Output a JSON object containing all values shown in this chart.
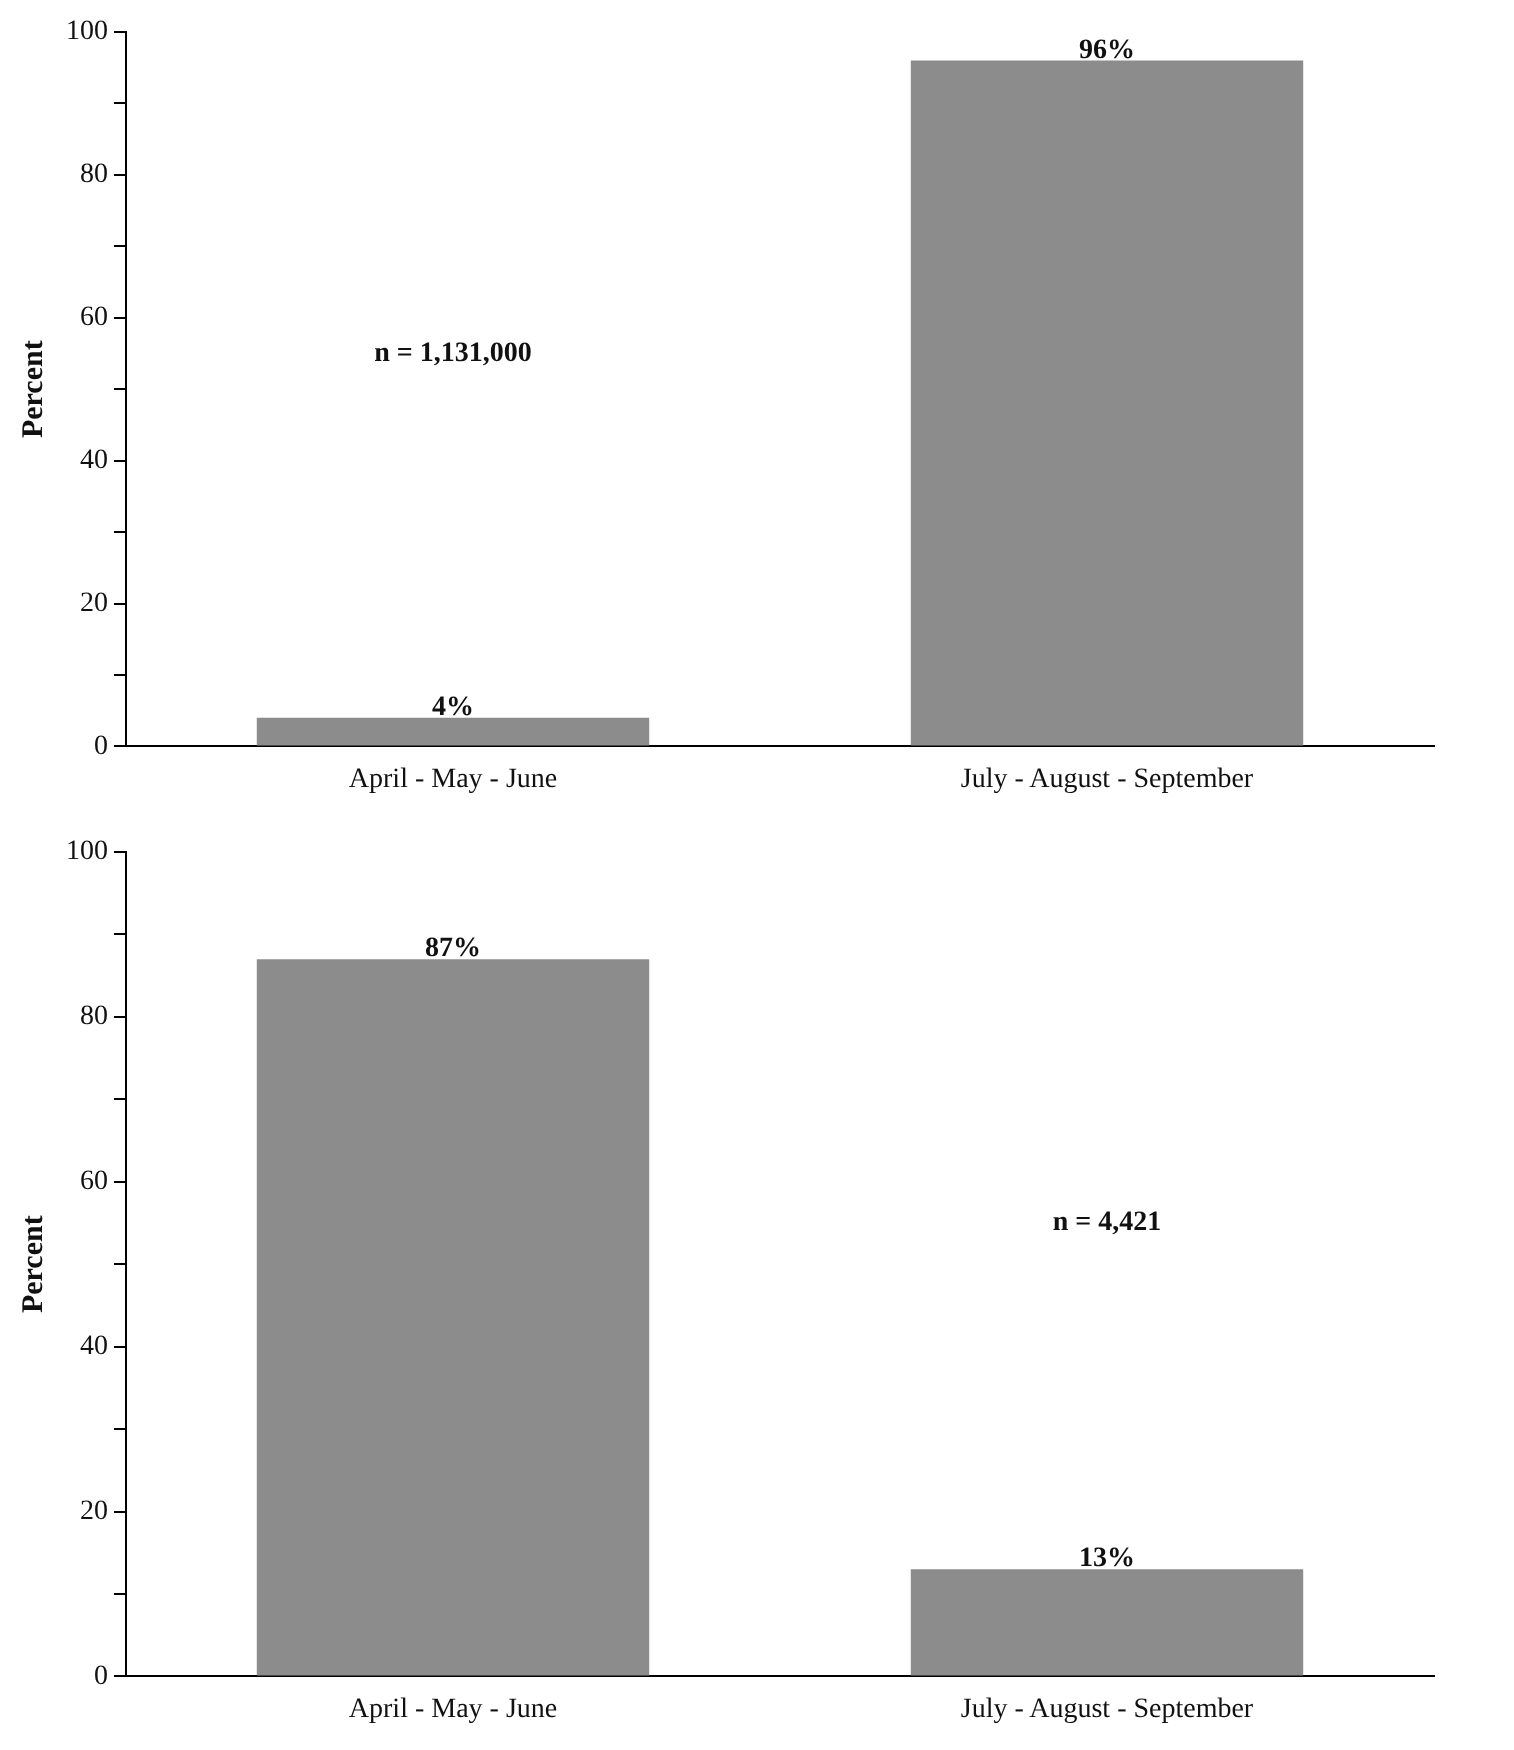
{
  "chart_data": [
    {
      "type": "bar",
      "ylabel": "Percent",
      "categories": [
        "April - May - June",
        "July - August - September"
      ],
      "values": [
        4,
        96
      ],
      "value_labels": [
        "4%",
        "96%"
      ],
      "color": "#8c8c8c",
      "ylim": [
        0,
        100
      ],
      "yticks": [
        0,
        {
          "value": 10,
          "label": null
        },
        20,
        {
          "value": 30,
          "label": null
        },
        40,
        {
          "value": 50,
          "label": null
        },
        60,
        {
          "value": 70,
          "label": null
        },
        80,
        {
          "value": 90,
          "label": null
        },
        100
      ],
      "annotations": [
        "n = 1,131,000"
      ],
      "grid": false,
      "legend": false
    },
    {
      "type": "bar",
      "ylabel": "Percent",
      "categories": [
        "April - May - June",
        "July - August - September"
      ],
      "values": [
        87,
        13
      ],
      "value_labels": [
        "87%",
        "13%"
      ],
      "color": "#8c8c8c",
      "ylim": [
        0,
        100
      ],
      "yticks": [
        0,
        {
          "value": 10,
          "label": null
        },
        20,
        {
          "value": 30,
          "label": null
        },
        40,
        {
          "value": 50,
          "label": null
        },
        60,
        {
          "value": 70,
          "label": null
        },
        80,
        {
          "value": 90,
          "label": null
        },
        100
      ],
      "annotations": [
        "n = 4,421"
      ],
      "grid": false,
      "legend": false
    }
  ]
}
